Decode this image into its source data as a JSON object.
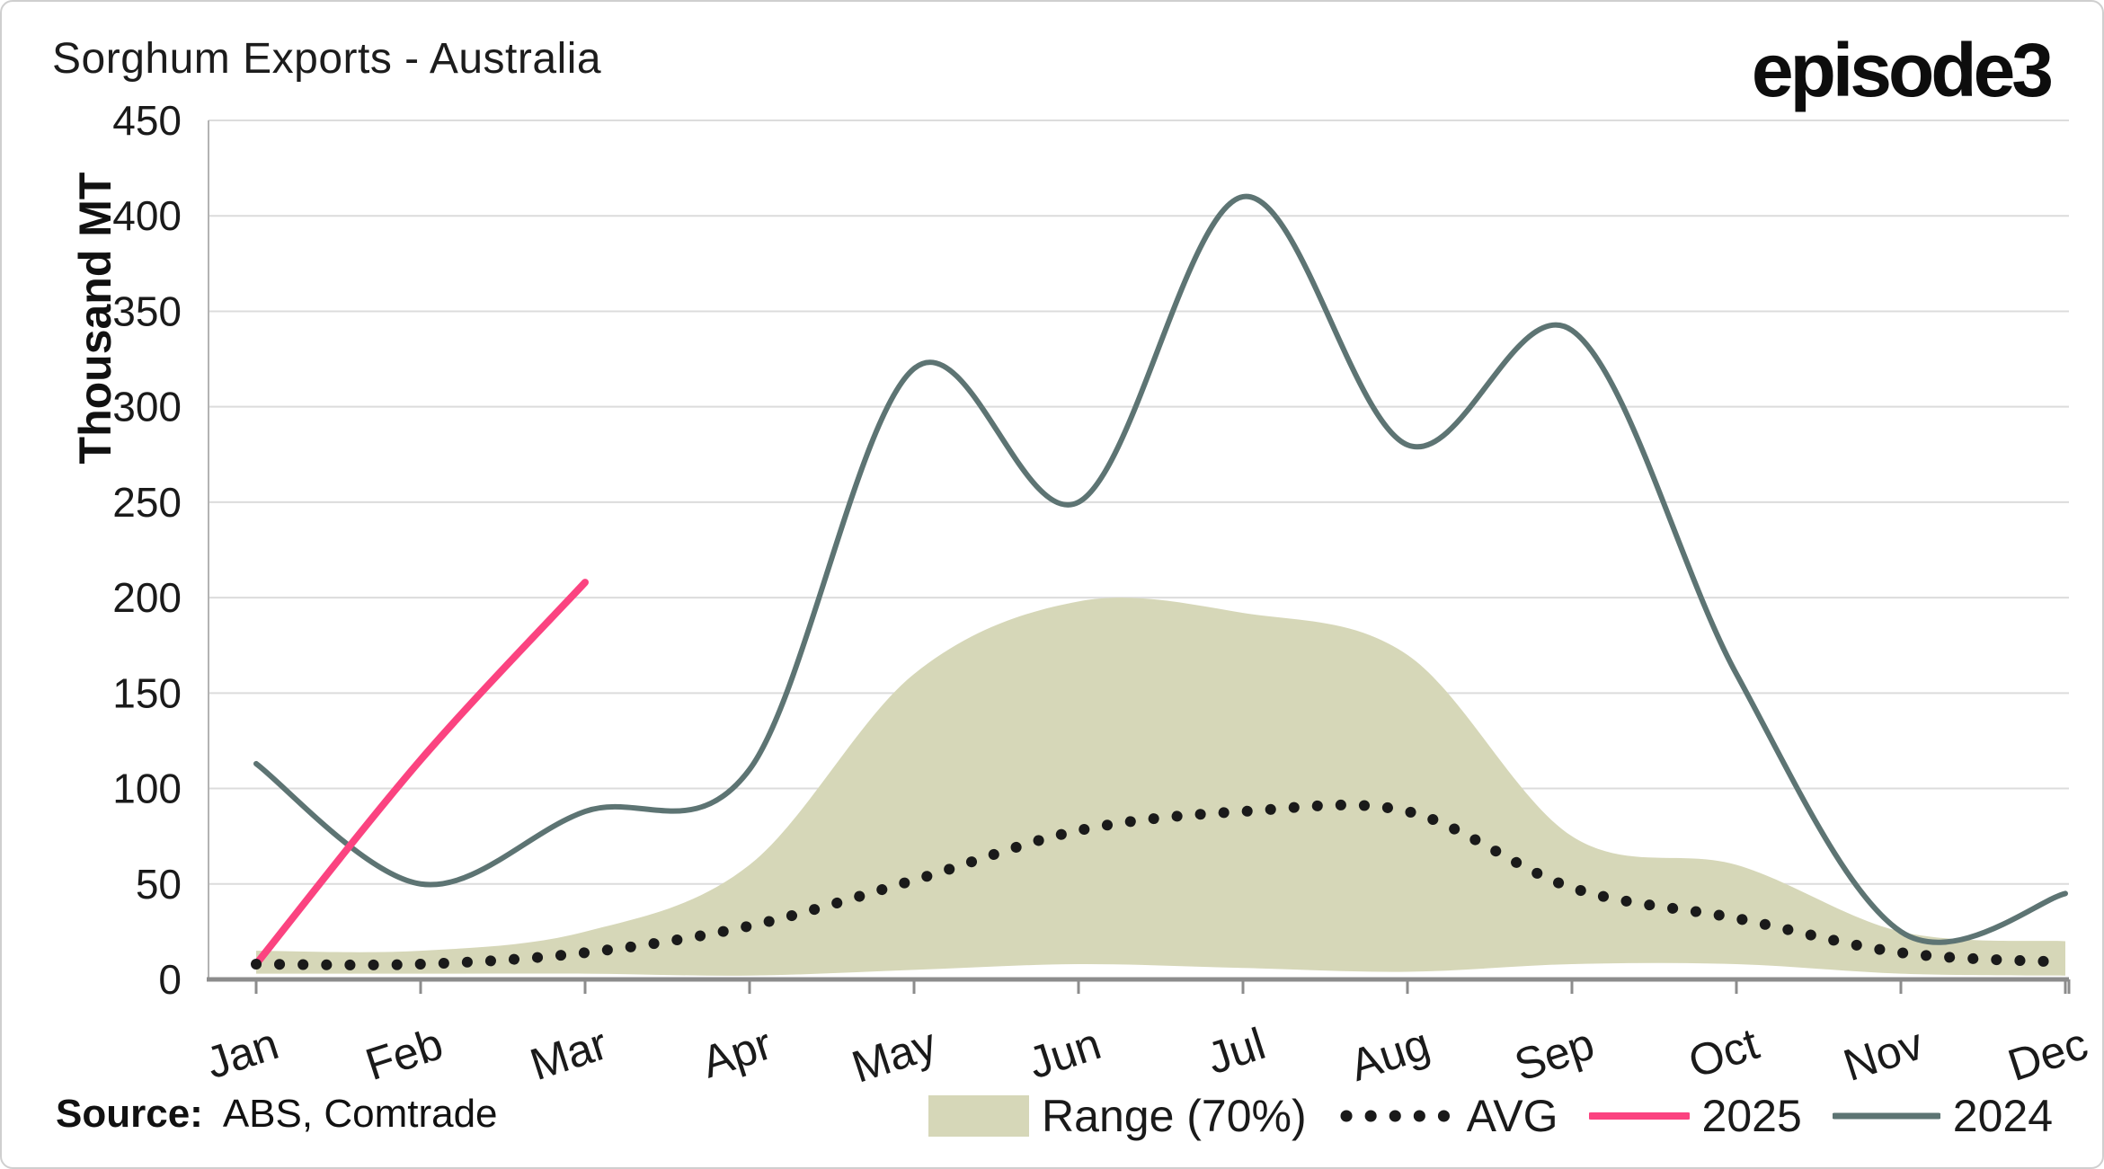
{
  "header": {
    "title": "Sorghum Exports - Australia",
    "logo": "episode3"
  },
  "source": {
    "label": "Source:",
    "text": "ABS, Comtrade"
  },
  "legend": {
    "range": "Range (70%)",
    "avg": "AVG",
    "y2025": "2025",
    "y2024": "2024"
  },
  "chart_data": {
    "type": "line",
    "title": "Sorghum Exports - Australia",
    "xlabel": "",
    "ylabel": "Thousand MT",
    "ylim": [
      0,
      450
    ],
    "ytick_step": 50,
    "grid": "horizontal",
    "legend_position": "bottom-right",
    "categories": [
      "Jan",
      "Feb",
      "Mar",
      "Apr",
      "May",
      "Jun",
      "Jul",
      "Aug",
      "Sep",
      "Oct",
      "Nov",
      "Dec"
    ],
    "series": [
      {
        "name": "Range (70%)",
        "type": "band",
        "upper": [
          15,
          15,
          25,
          60,
          160,
          198,
          192,
          170,
          75,
          60,
          25,
          20
        ],
        "lower": [
          3,
          3,
          3,
          2,
          5,
          8,
          6,
          4,
          8,
          8,
          3,
          2
        ]
      },
      {
        "name": "AVG",
        "type": "dotted-line",
        "values": [
          8,
          8,
          14,
          28,
          52,
          78,
          88,
          88,
          48,
          32,
          14,
          9
        ]
      },
      {
        "name": "2025",
        "type": "line",
        "values": [
          8,
          115,
          208
        ],
        "months_covered": [
          "Jan",
          "Feb",
          "Mar"
        ]
      },
      {
        "name": "2024",
        "type": "line",
        "values": [
          113,
          50,
          88,
          110,
          320,
          250,
          410,
          280,
          340,
          160,
          25,
          45
        ]
      }
    ],
    "colors": {
      "range": "#d6d7b8",
      "avg": "#1a1a1a",
      "y2025": "#fb4380",
      "y2024": "#5d7473",
      "gridline": "#dcdcdc",
      "axis": "#8c8c8c"
    }
  }
}
